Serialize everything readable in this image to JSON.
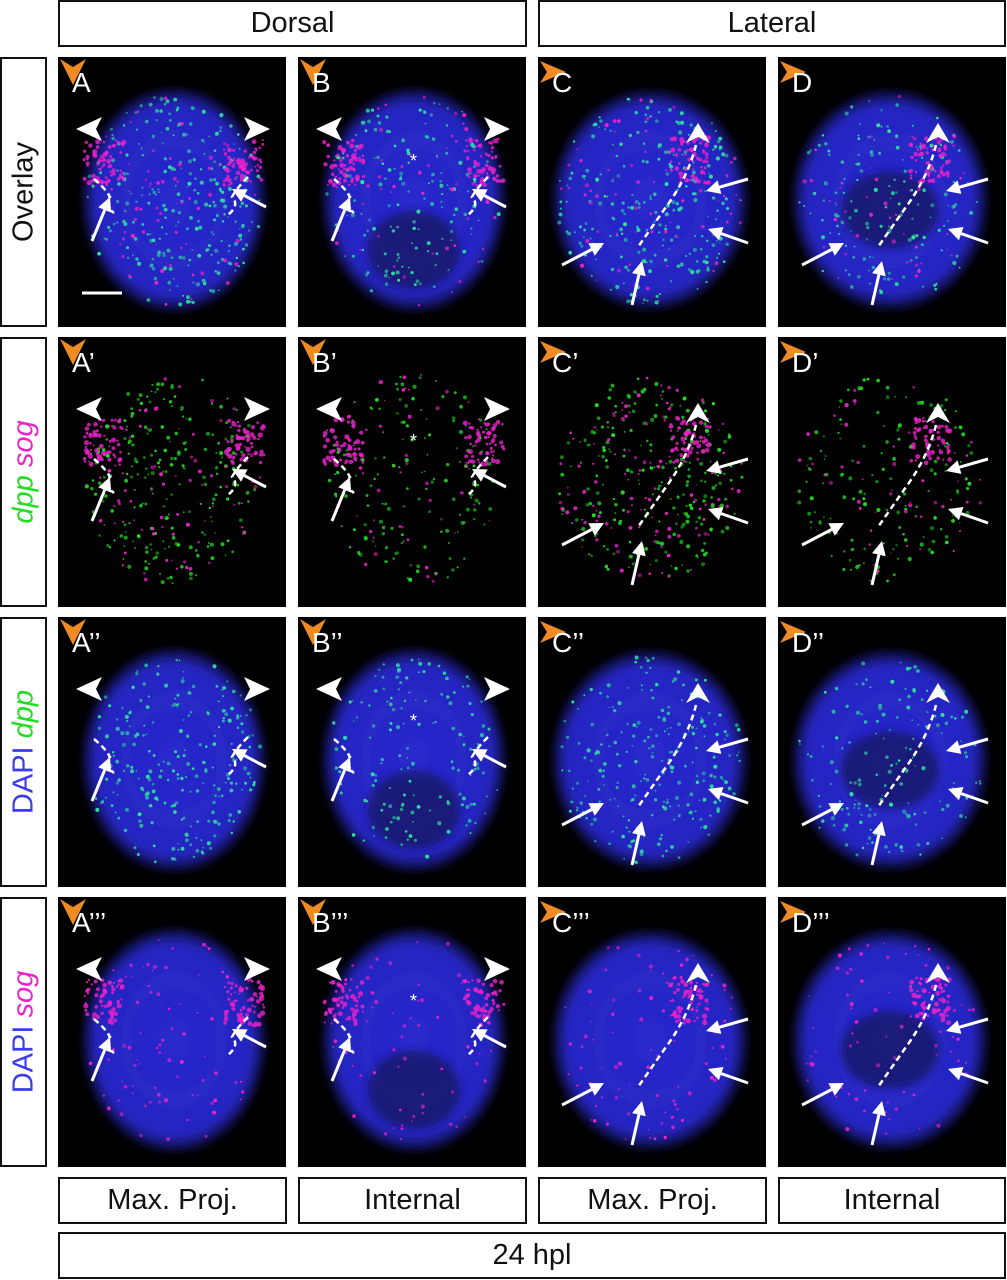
{
  "headers": {
    "dorsal": "Dorsal",
    "lateral": "Lateral"
  },
  "row_labels": [
    {
      "parts": [
        {
          "text": "Overlay",
          "color": "#111111"
        }
      ]
    },
    {
      "parts": [
        {
          "text": "dpp",
          "color": "#22dd22"
        },
        {
          "text": " ",
          "color": "#111111"
        },
        {
          "text": "sog",
          "color": "#ee22cc"
        }
      ]
    },
    {
      "parts": [
        {
          "text": "DAPI",
          "color": "#3a3aee"
        },
        {
          "text": " ",
          "color": "#111111"
        },
        {
          "text": "dpp",
          "color": "#22dd22"
        }
      ]
    },
    {
      "parts": [
        {
          "text": "DAPI",
          "color": "#3a3aee"
        },
        {
          "text": " ",
          "color": "#111111"
        },
        {
          "text": "sog",
          "color": "#ee22cc"
        }
      ]
    }
  ],
  "panel_labels": [
    [
      "A",
      "B",
      "C",
      "D"
    ],
    [
      "A’",
      "B’",
      "C’",
      "D’"
    ],
    [
      "A’’",
      "B’’",
      "C’’",
      "D’’"
    ],
    [
      "A’’’",
      "B’’’",
      "C’’’",
      "D’’’"
    ]
  ],
  "column_footers": [
    "Max. Proj.",
    "Internal",
    "Max. Proj.",
    "Internal"
  ],
  "bottom_label": "24 hpl",
  "colors": {
    "dapi": "#2a2ad8",
    "dpp": "#22dd22",
    "sog": "#ee22cc",
    "arrowhead_orange": "#f08a24",
    "background": "#000000"
  }
}
